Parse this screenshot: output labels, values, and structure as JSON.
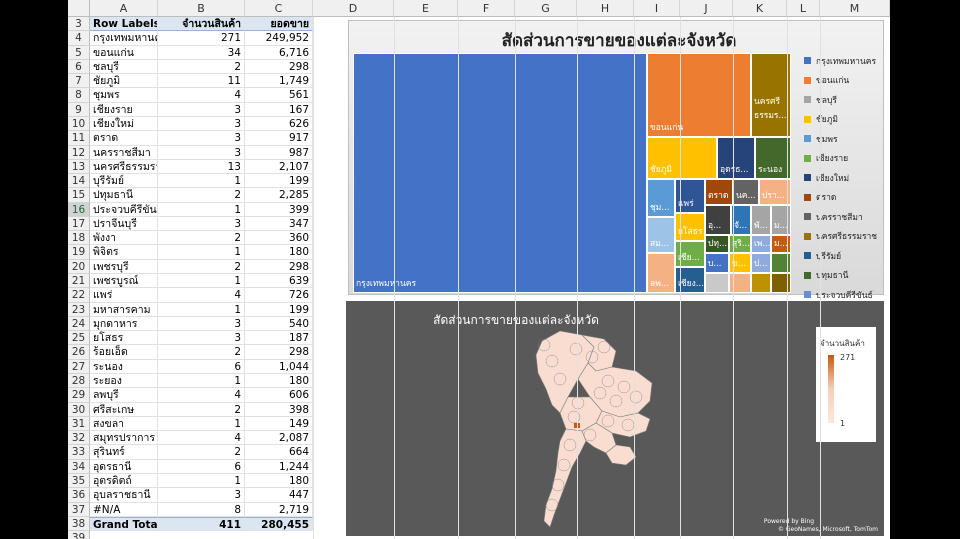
{
  "columns": [
    "A",
    "B",
    "C",
    "D",
    "E",
    "F",
    "G",
    "H",
    "I",
    "J",
    "K",
    "L",
    "M"
  ],
  "pivot": {
    "header": {
      "row": "3",
      "label": "Row Labels",
      "col_b": "จำนวนสินค้า",
      "col_c": "ยอดขาย"
    },
    "rows": [
      {
        "row": "4",
        "name": "กรุงเทพมหานคร",
        "qty": "271",
        "sales": "249,952"
      },
      {
        "row": "5",
        "name": "ขอนแก่น",
        "qty": "34",
        "sales": "6,716"
      },
      {
        "row": "6",
        "name": "ชลบุรี",
        "qty": "2",
        "sales": "298"
      },
      {
        "row": "7",
        "name": "ชัยภูมิ",
        "qty": "11",
        "sales": "1,749"
      },
      {
        "row": "8",
        "name": "ชุมพร",
        "qty": "4",
        "sales": "561"
      },
      {
        "row": "9",
        "name": "เชียงราย",
        "qty": "3",
        "sales": "167"
      },
      {
        "row": "10",
        "name": "เชียงใหม่",
        "qty": "3",
        "sales": "626"
      },
      {
        "row": "11",
        "name": "ตราด",
        "qty": "3",
        "sales": "917"
      },
      {
        "row": "12",
        "name": "นครราชสีมา",
        "qty": "3",
        "sales": "987"
      },
      {
        "row": "13",
        "name": "นครศรีธรรมราช",
        "qty": "13",
        "sales": "2,107"
      },
      {
        "row": "14",
        "name": "บุรีรัมย์",
        "qty": "1",
        "sales": "199"
      },
      {
        "row": "15",
        "name": "ปทุมธานี",
        "qty": "2",
        "sales": "2,285"
      },
      {
        "row": "16",
        "name": "ประจวบคีรีขันธ์",
        "qty": "1",
        "sales": "399"
      },
      {
        "row": "17",
        "name": "ปราจีนบุรี",
        "qty": "3",
        "sales": "347"
      },
      {
        "row": "18",
        "name": "พังงา",
        "qty": "2",
        "sales": "360"
      },
      {
        "row": "19",
        "name": "พิจิตร",
        "qty": "1",
        "sales": "180"
      },
      {
        "row": "20",
        "name": "เพชรบุรี",
        "qty": "2",
        "sales": "298"
      },
      {
        "row": "21",
        "name": "เพชรบูรณ์",
        "qty": "1",
        "sales": "639"
      },
      {
        "row": "22",
        "name": "แพร่",
        "qty": "4",
        "sales": "726"
      },
      {
        "row": "23",
        "name": "มหาสารคาม",
        "qty": "1",
        "sales": "199"
      },
      {
        "row": "24",
        "name": "มุกดาหาร",
        "qty": "3",
        "sales": "540"
      },
      {
        "row": "25",
        "name": "ยโสธร",
        "qty": "3",
        "sales": "187"
      },
      {
        "row": "26",
        "name": "ร้อยเอ็ด",
        "qty": "2",
        "sales": "298"
      },
      {
        "row": "27",
        "name": "ระนอง",
        "qty": "6",
        "sales": "1,044"
      },
      {
        "row": "28",
        "name": "ระยอง",
        "qty": "1",
        "sales": "180"
      },
      {
        "row": "29",
        "name": "ลพบุรี",
        "qty": "4",
        "sales": "606"
      },
      {
        "row": "30",
        "name": "ศรีสะเกษ",
        "qty": "2",
        "sales": "398"
      },
      {
        "row": "31",
        "name": "สงขลา",
        "qty": "1",
        "sales": "149"
      },
      {
        "row": "32",
        "name": "สมุทรปราการ",
        "qty": "4",
        "sales": "2,087"
      },
      {
        "row": "33",
        "name": "สุรินทร์",
        "qty": "2",
        "sales": "664"
      },
      {
        "row": "34",
        "name": "อุดรธานี",
        "qty": "6",
        "sales": "1,244"
      },
      {
        "row": "35",
        "name": "อุตรดิตถ์",
        "qty": "1",
        "sales": "180"
      },
      {
        "row": "36",
        "name": "อุบลราชธานี",
        "qty": "3",
        "sales": "447"
      },
      {
        "row": "37",
        "name": "#N/A",
        "qty": "8",
        "sales": "2,719"
      }
    ],
    "total": {
      "row": "38",
      "label": "Grand Total",
      "qty": "411",
      "sales": "280,455"
    },
    "after_rows": [
      "39"
    ],
    "selected_row": "16"
  },
  "treemap": {
    "title": "สัดส่วนการขายของแต่ละจังหวัด",
    "tiles": [
      {
        "label": "กรุงเทพมหานคร",
        "color": "#4472c4"
      },
      {
        "label": "ขอนแก่น",
        "color": "#ed7d31"
      },
      {
        "label": "นครศรี ธรรมร...",
        "color": "#997300"
      },
      {
        "label": "ชัยภูมิ",
        "color": "#ffc000"
      },
      {
        "label": "อุดรธ...",
        "color": "#264478"
      },
      {
        "label": "ระนอง",
        "color": "#43682b"
      },
      {
        "label": "ชุม...",
        "color": "#5b9bd5"
      },
      {
        "label": "สม...",
        "color": "#9dc3e6"
      },
      {
        "label": "ลพ...",
        "color": "#f4b183"
      },
      {
        "label": "แพร่",
        "color": "#2f5597"
      },
      {
        "label": "ยโสธร",
        "color": "#ffc000"
      },
      {
        "label": "เชีย...",
        "color": "#70ad47"
      },
      {
        "label": "เชียง...",
        "color": "#255e91"
      },
      {
        "label": "ตราด",
        "color": "#9e480e"
      },
      {
        "label": "นค...",
        "color": "#636363"
      },
      {
        "label": "ปรา...",
        "color": "#f4b183"
      },
      {
        "label": "อุ...",
        "color": "#404040"
      },
      {
        "label": "จั...",
        "color": "#2e75b6"
      },
      {
        "label": "พั...",
        "color": "#a5a5a5"
      },
      {
        "label": "ม...",
        "color": "#a5a5a5"
      },
      {
        "label": "ปทุ...",
        "color": "#375623"
      },
      {
        "label": "สุริ...",
        "color": "#70ad47"
      },
      {
        "label": "เพ...",
        "color": "#8faadc"
      },
      {
        "label": "ม...",
        "color": "#c55a11"
      },
      {
        "label": "บ...",
        "color": "#4472c4"
      },
      {
        "label": "ข...",
        "color": "#ffc000"
      },
      {
        "label": "ป...",
        "color": "#8faadc"
      },
      {
        "label": "",
        "color": "#548235"
      },
      {
        "label": "",
        "color": "#c9c9c9"
      },
      {
        "label": "",
        "color": "#f4b183"
      },
      {
        "label": "",
        "color": "#bf9000"
      },
      {
        "label": "",
        "color": "#7f6000"
      },
      {
        "label": "",
        "color": "#dae3f3"
      },
      {
        "label": "",
        "color": "#7f7f7f"
      },
      {
        "label": "",
        "color": "#a9d18e"
      },
      {
        "label": "",
        "color": "#9e480e"
      },
      {
        "label": "",
        "color": "#ffd966"
      },
      {
        "label": "",
        "color": "#843c0c"
      }
    ],
    "legend": [
      {
        "label": "กรุงเทพมหานคร",
        "color": "#4472c4"
      },
      {
        "label": "ขอนแก่น",
        "color": "#ed7d31"
      },
      {
        "label": "ชลบุรี",
        "color": "#a5a5a5"
      },
      {
        "label": "ชัยภูมิ",
        "color": "#ffc000"
      },
      {
        "label": "ชุมพร",
        "color": "#5b9bd5"
      },
      {
        "label": "เชียงราย",
        "color": "#70ad47"
      },
      {
        "label": "เชียงใหม่",
        "color": "#264478"
      },
      {
        "label": "ตราด",
        "color": "#9e480e"
      },
      {
        "label": "นครราชสีมา",
        "color": "#636363"
      },
      {
        "label": "นครศรีธรรมราช",
        "color": "#997300"
      },
      {
        "label": "บุรีรัมย์",
        "color": "#255e91"
      },
      {
        "label": "ปทุมธานี",
        "color": "#43682b"
      },
      {
        "label": "ประจวบคีรีขันธ์",
        "color": "#698ed0"
      }
    ]
  },
  "map": {
    "title": "สัดส่วนการขายของแต่ละจังหวัด",
    "legend_title": "จำนวนสินค้า",
    "legend_max": "271",
    "legend_min": "1",
    "credit1": "Powered by Bing",
    "credit2": "© GeoNames, Microsoft, TomTom",
    "fill_light": "#f8ddd0",
    "fill_dark": "#c55a11",
    "stroke": "#7f7f7f"
  }
}
